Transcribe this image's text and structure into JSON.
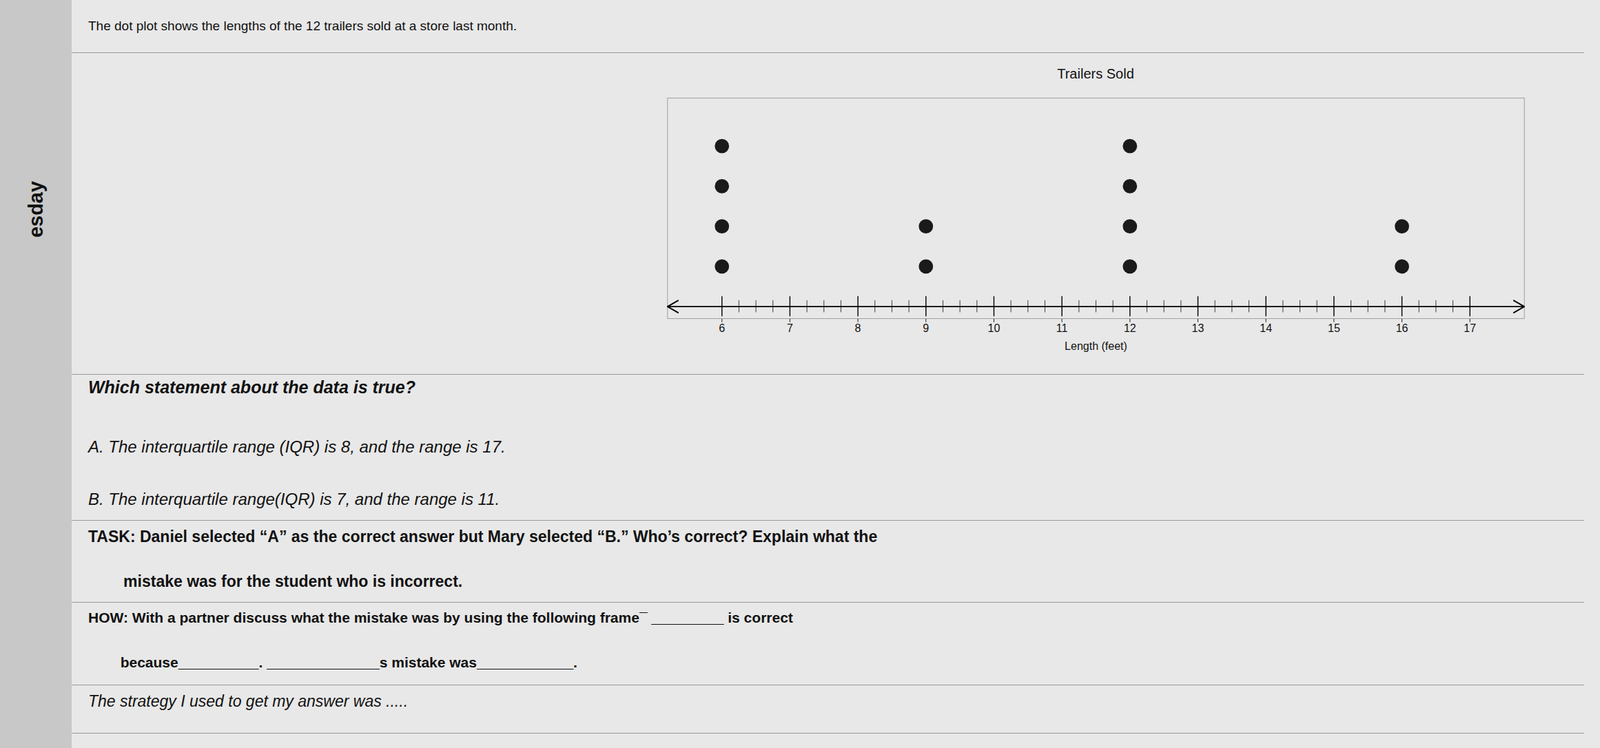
{
  "chart_data": {
    "type": "dot",
    "title": "Trailers Sold",
    "xlabel": "Length (feet)",
    "x": [
      6,
      9,
      12,
      16
    ],
    "values": [
      4,
      2,
      4,
      2
    ],
    "color": "#1a1a1a",
    "xlim": [
      5.2,
      17.8
    ],
    "xticks": [
      6,
      7,
      8,
      9,
      10,
      11,
      12,
      13,
      14,
      15,
      16,
      17
    ],
    "ylim": [
      -0.3,
      5.2
    ],
    "tick_labels": "x",
    "grid": false,
    "annotations": [
      "The dot plot shows the lengths of the 12 trailers sold at a store last month.",
      "Which statement about the data is true?",
      "A. The interquartile range (IQR) is 8, and the range is 17.",
      "B. The interquartile range(IQR) is 7, and the range is 11.",
      "TASK: Daniel selected “A” as the correct answer but Mary selected “B.” Who’s correct? Explain what the",
      "        mistake was for the student who is incorrect.",
      "HOW: With a partner discuss what the mistake was by using the following frame¯ _________ is correct",
      "        because__________. ______________s mistake was____________.",
      "The strategy I used to get my answer was .....",
      "esday"
    ]
  }
}
